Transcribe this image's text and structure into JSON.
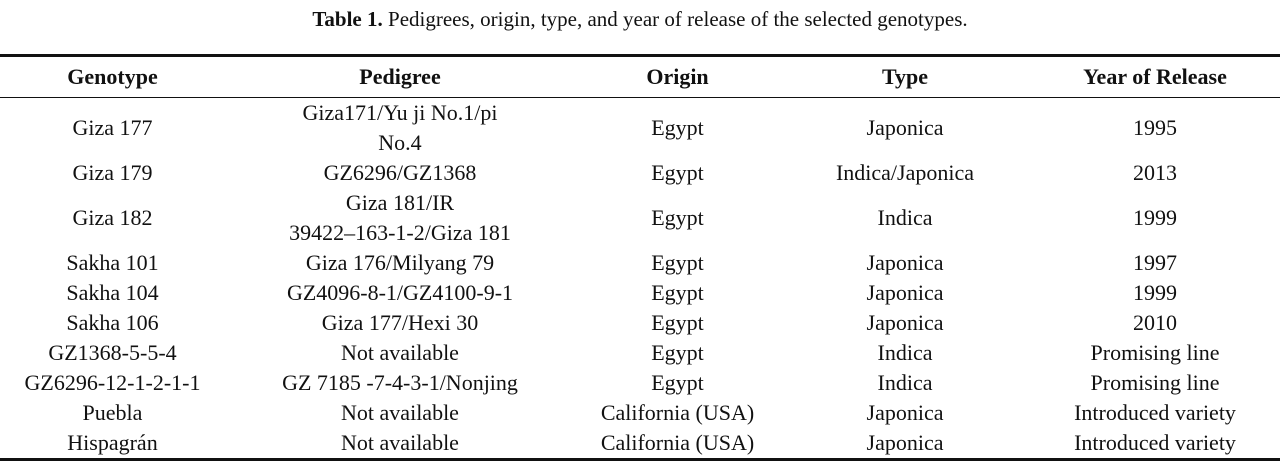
{
  "caption": {
    "label": "Table 1.",
    "text": "Pedigrees, origin, type, and year of release of the selected genotypes."
  },
  "table": {
    "header": [
      "Genotype",
      "Pedigree",
      "Origin",
      "Type",
      "Year of Release"
    ],
    "rows": [
      [
        "Giza 177",
        [
          "Giza171/Yu ji No.1/pi",
          "No.4"
        ],
        "Egypt",
        "Japonica",
        "1995"
      ],
      [
        "Giza 179",
        "GZ6296/GZ1368",
        "Egypt",
        "Indica/Japonica",
        "2013"
      ],
      [
        "Giza 182",
        [
          "Giza 181/IR",
          "39422–163-1-2/Giza 181"
        ],
        "Egypt",
        "Indica",
        "1999"
      ],
      [
        "Sakha 101",
        "Giza 176/Milyang 79",
        "Egypt",
        "Japonica",
        "1997"
      ],
      [
        "Sakha 104",
        "GZ4096-8-1/GZ4100-9-1",
        "Egypt",
        "Japonica",
        "1999"
      ],
      [
        "Sakha 106",
        "Giza 177/Hexi 30",
        "Egypt",
        "Japonica",
        "2010"
      ],
      [
        "GZ1368-5-5-4",
        "Not available",
        "Egypt",
        "Indica",
        "Promising line"
      ],
      [
        "GZ6296-12-1-2-1-1",
        "GZ 7185 -7-4-3-1/Nonjing",
        "Egypt",
        "Indica",
        "Promising line"
      ],
      [
        "Puebla",
        "Not available",
        "California (USA)",
        "Japonica",
        "Introduced variety"
      ],
      [
        "Hispagrán",
        "Not available",
        "California (USA)",
        "Japonica",
        "Introduced variety"
      ]
    ]
  }
}
